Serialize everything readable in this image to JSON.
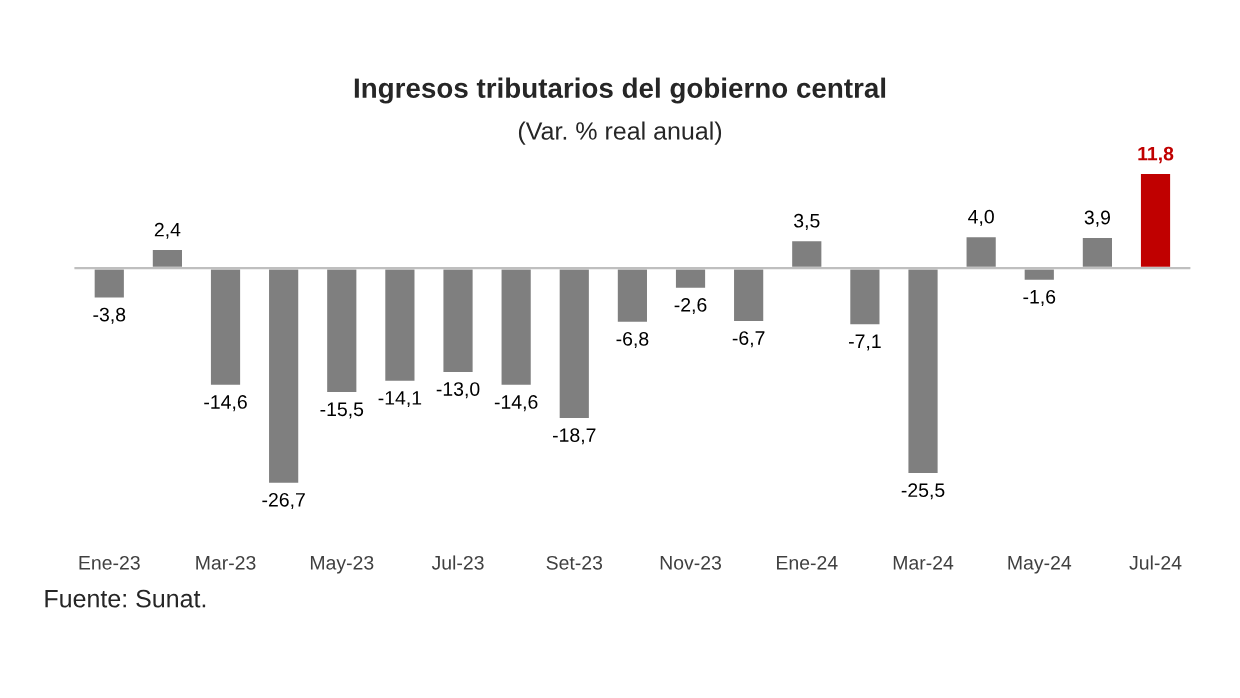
{
  "chart_data": {
    "type": "bar",
    "title": "Ingresos tributarios del gobierno central",
    "subtitle": "(Var. % real anual)",
    "categories": [
      "Ene-23",
      null,
      "Mar-23",
      null,
      "May-23",
      null,
      "Jul-23",
      null,
      "Set-23",
      null,
      "Nov-23",
      null,
      "Ene-24",
      null,
      "Mar-24",
      null,
      "May-24",
      null,
      "Jul-24"
    ],
    "values": [
      -3.8,
      2.4,
      -14.6,
      -26.7,
      -15.5,
      -14.1,
      -13.0,
      -14.6,
      -18.7,
      -6.8,
      -2.6,
      -6.7,
      3.5,
      -7.1,
      -25.5,
      4.0,
      -1.6,
      3.9,
      11.8
    ],
    "value_labels": [
      "-3,8",
      "2,4",
      "-14,6",
      "-26,7",
      "-15,5",
      "-14,1",
      "-13,0",
      "-14,6",
      "-18,7",
      "-6,8",
      "-2,6",
      "-6,7",
      "3,5",
      "-7,1",
      "-25,5",
      "4,0",
      "-1,6",
      "3,9",
      "11,8"
    ],
    "colors": [
      "#7f7f7f",
      "#7f7f7f",
      "#7f7f7f",
      "#7f7f7f",
      "#7f7f7f",
      "#7f7f7f",
      "#7f7f7f",
      "#7f7f7f",
      "#7f7f7f",
      "#7f7f7f",
      "#7f7f7f",
      "#7f7f7f",
      "#7f7f7f",
      "#7f7f7f",
      "#7f7f7f",
      "#7f7f7f",
      "#7f7f7f",
      "#7f7f7f",
      "#c00000"
    ],
    "annotations": [
      "Fuente: Sunat."
    ],
    "grid": false,
    "legend": false
  }
}
